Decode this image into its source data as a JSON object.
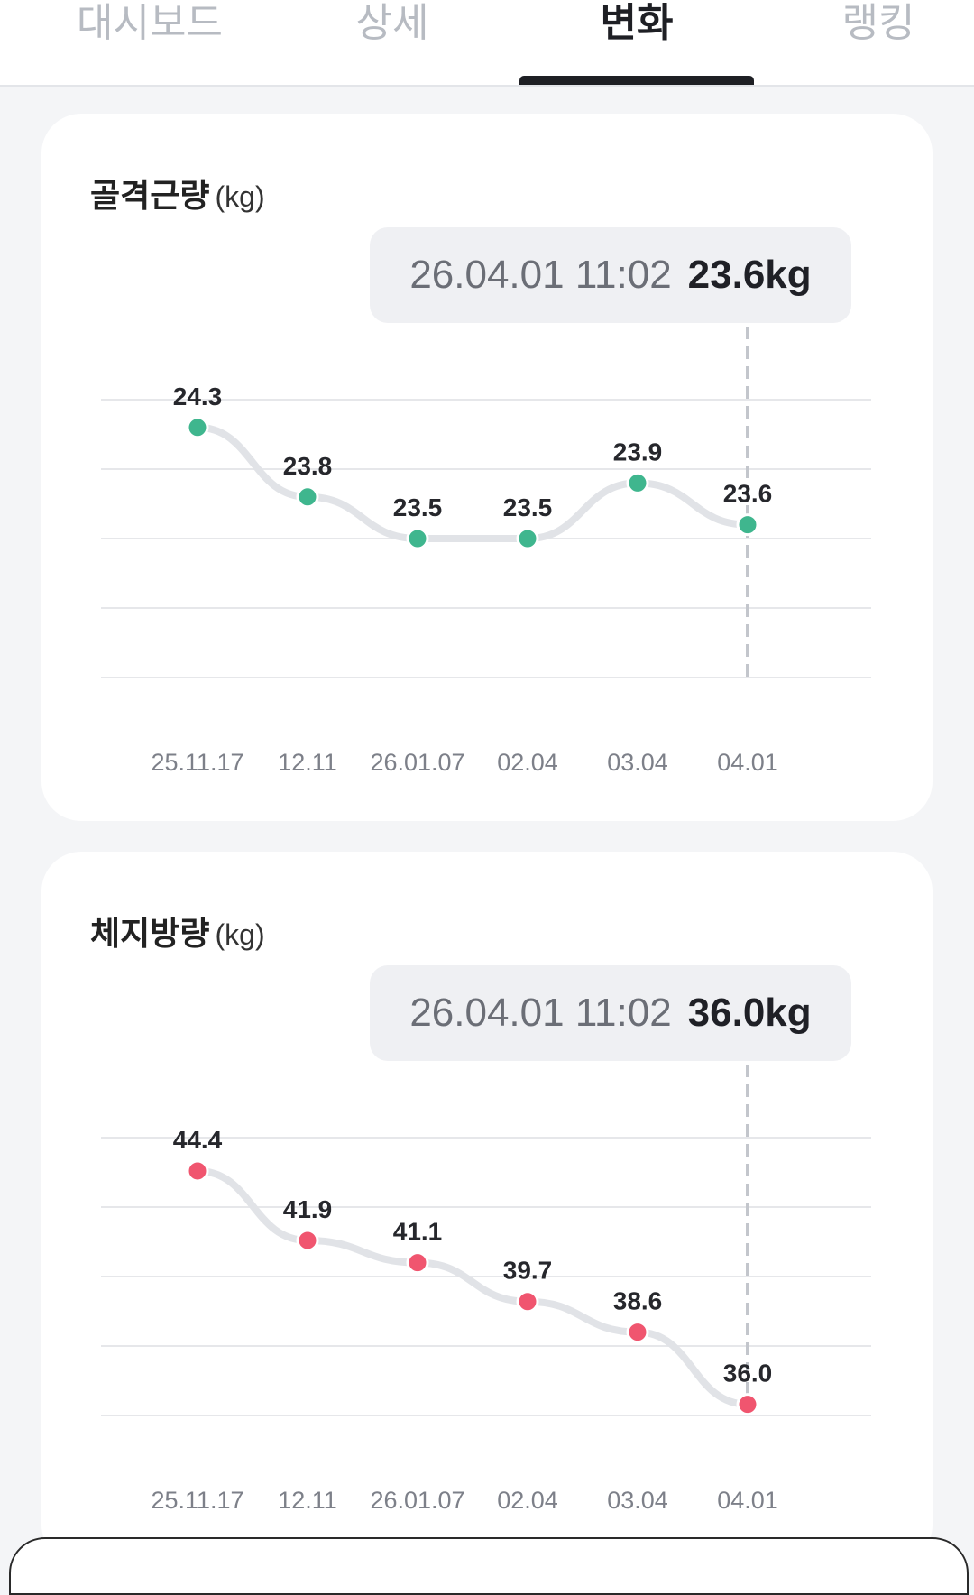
{
  "tabs": [
    {
      "label": "대시보드",
      "active": false
    },
    {
      "label": "상세",
      "active": false
    },
    {
      "label": "변화",
      "active": true
    },
    {
      "label": "랭킹",
      "active": false
    }
  ],
  "cards": [
    {
      "title": "골격근량",
      "unit": "(kg)",
      "tooltip": {
        "datetime": "26.04.01 11:02",
        "value": "23.6kg"
      },
      "point_color": "#3fb68e",
      "chart_data": {
        "type": "line",
        "categories": [
          "25.11.17",
          "12.11",
          "26.01.07",
          "02.04",
          "03.04",
          "04.01"
        ],
        "values": [
          24.3,
          23.8,
          23.5,
          23.5,
          23.9,
          23.6
        ],
        "labels": [
          "24.3",
          "23.8",
          "23.5",
          "23.5",
          "23.9",
          "23.6"
        ],
        "selected_index": 5,
        "ylim": [
          22.5,
          24.5
        ],
        "grid": true
      }
    },
    {
      "title": "체지방량",
      "unit": "(kg)",
      "tooltip": {
        "datetime": "26.04.01 11:02",
        "value": "36.0kg"
      },
      "point_color": "#f0556f",
      "chart_data": {
        "type": "line",
        "categories": [
          "25.11.17",
          "12.11",
          "26.01.07",
          "02.04",
          "03.04",
          "04.01"
        ],
        "values": [
          44.4,
          41.9,
          41.1,
          39.7,
          38.6,
          36.0
        ],
        "labels": [
          "44.4",
          "41.9",
          "41.1",
          "39.7",
          "38.6",
          "36.0"
        ],
        "selected_index": 5,
        "ylim": [
          35.6,
          45.6
        ],
        "grid": true
      }
    }
  ]
}
